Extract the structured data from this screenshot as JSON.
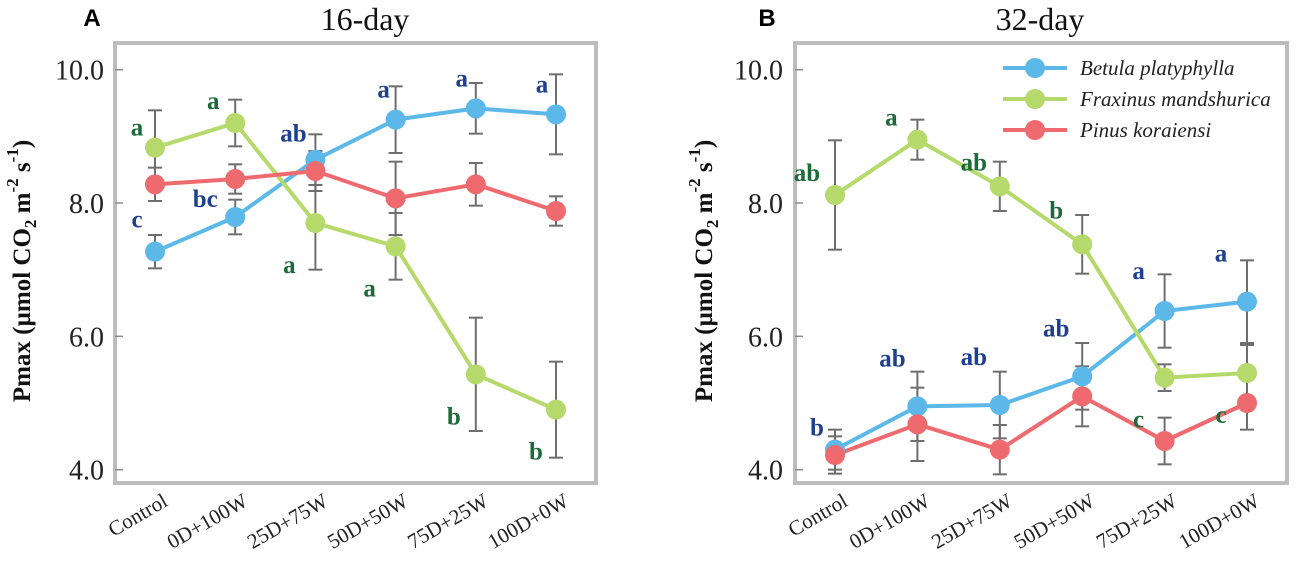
{
  "colors": {
    "betula": "#5bb8e8",
    "fraxinus": "#b5d96a",
    "pinus": "#ee6a6e",
    "betula_letter": "#1f3f8f",
    "fraxinus_letter": "#1e6b3a",
    "error_bar": "#6e6e6e",
    "frame": "#bdbdbd"
  },
  "chart_data": [
    {
      "type": "line",
      "panel_label": "A",
      "title": "16-day",
      "ylabel_main": "Pmax (µmol CO",
      "ylabel_sub2": "2",
      "ylabel_mid": " m",
      "ylabel_sup1": "-2",
      "ylabel_mid2": " s",
      "ylabel_sup2": "-1",
      "ylabel_end": ")",
      "ylim": [
        3.8,
        10.4
      ],
      "yticks": [
        4.0,
        6.0,
        8.0,
        10.0
      ],
      "ytick_labels": [
        "4.0",
        "6.0",
        "8.0",
        "10.0"
      ],
      "categories": [
        "Control",
        "0D+100W",
        "25D+75W",
        "50D+50W",
        "75D+25W",
        "100D+0W"
      ],
      "series": [
        {
          "name": "Betula platyphylla",
          "color_key": "betula",
          "values": [
            7.27,
            7.79,
            8.65,
            9.25,
            9.42,
            9.33
          ],
          "errors": [
            0.25,
            0.26,
            0.38,
            0.5,
            0.38,
            0.6
          ],
          "letters": [
            "c",
            "bc",
            "ab",
            "a",
            "a",
            "a"
          ]
        },
        {
          "name": "Fraxinus mandshurica",
          "color_key": "fraxinus",
          "values": [
            8.83,
            9.2,
            7.7,
            7.35,
            5.43,
            4.9
          ],
          "errors": [
            0.56,
            0.35,
            0.7,
            0.5,
            0.85,
            0.72
          ],
          "letters": [
            "a",
            "a",
            "a",
            "a",
            "b",
            "b"
          ]
        },
        {
          "name": "Pinus koraiensi",
          "color_key": "pinus",
          "values": [
            8.28,
            8.36,
            8.48,
            8.07,
            8.28,
            7.88
          ],
          "errors": [
            0.25,
            0.22,
            0.3,
            0.55,
            0.32,
            0.22
          ],
          "letters": []
        }
      ]
    },
    {
      "type": "line",
      "panel_label": "B",
      "title": "32-day",
      "ylabel_main": "Pmax (µmol CO",
      "ylabel_sub2": "2",
      "ylabel_mid": " m",
      "ylabel_sup1": "-2",
      "ylabel_mid2": " s",
      "ylabel_sup2": "-1",
      "ylabel_end": ")",
      "ylim": [
        3.8,
        10.4
      ],
      "yticks": [
        4.0,
        6.0,
        8.0,
        10.0
      ],
      "ytick_labels": [
        "4.0",
        "6.0",
        "8.0",
        "10.0"
      ],
      "categories": [
        "Control",
        "0D+100W",
        "25D+75W",
        "50D+50W",
        "75D+25W",
        "100D+0W"
      ],
      "legend": [
        "Betula platyphylla",
        "Fraxinus mandshurica",
        "Pinus koraiensi"
      ],
      "legend_position": "top-right",
      "series": [
        {
          "name": "Betula platyphylla",
          "color_key": "betula",
          "values": [
            4.3,
            4.95,
            4.97,
            5.4,
            6.38,
            6.52
          ],
          "errors": [
            0.3,
            0.52,
            0.5,
            0.5,
            0.55,
            0.62
          ],
          "letters": [
            "b",
            "ab",
            "ab",
            "ab",
            "a",
            "a"
          ]
        },
        {
          "name": "Fraxinus mandshurica",
          "color_key": "fraxinus",
          "values": [
            8.12,
            8.95,
            8.25,
            7.38,
            5.38,
            5.45
          ],
          "errors": [
            0.82,
            0.3,
            0.37,
            0.44,
            0.2,
            0.42
          ],
          "letters": [
            "ab",
            "a",
            "ab",
            "b",
            "c",
            "c"
          ]
        },
        {
          "name": "Pinus koraiensi",
          "color_key": "pinus",
          "values": [
            4.22,
            4.68,
            4.3,
            5.1,
            4.43,
            5.0
          ],
          "errors": [
            0.28,
            0.55,
            0.37,
            0.45,
            0.35,
            0.4
          ],
          "letters": []
        }
      ]
    }
  ]
}
